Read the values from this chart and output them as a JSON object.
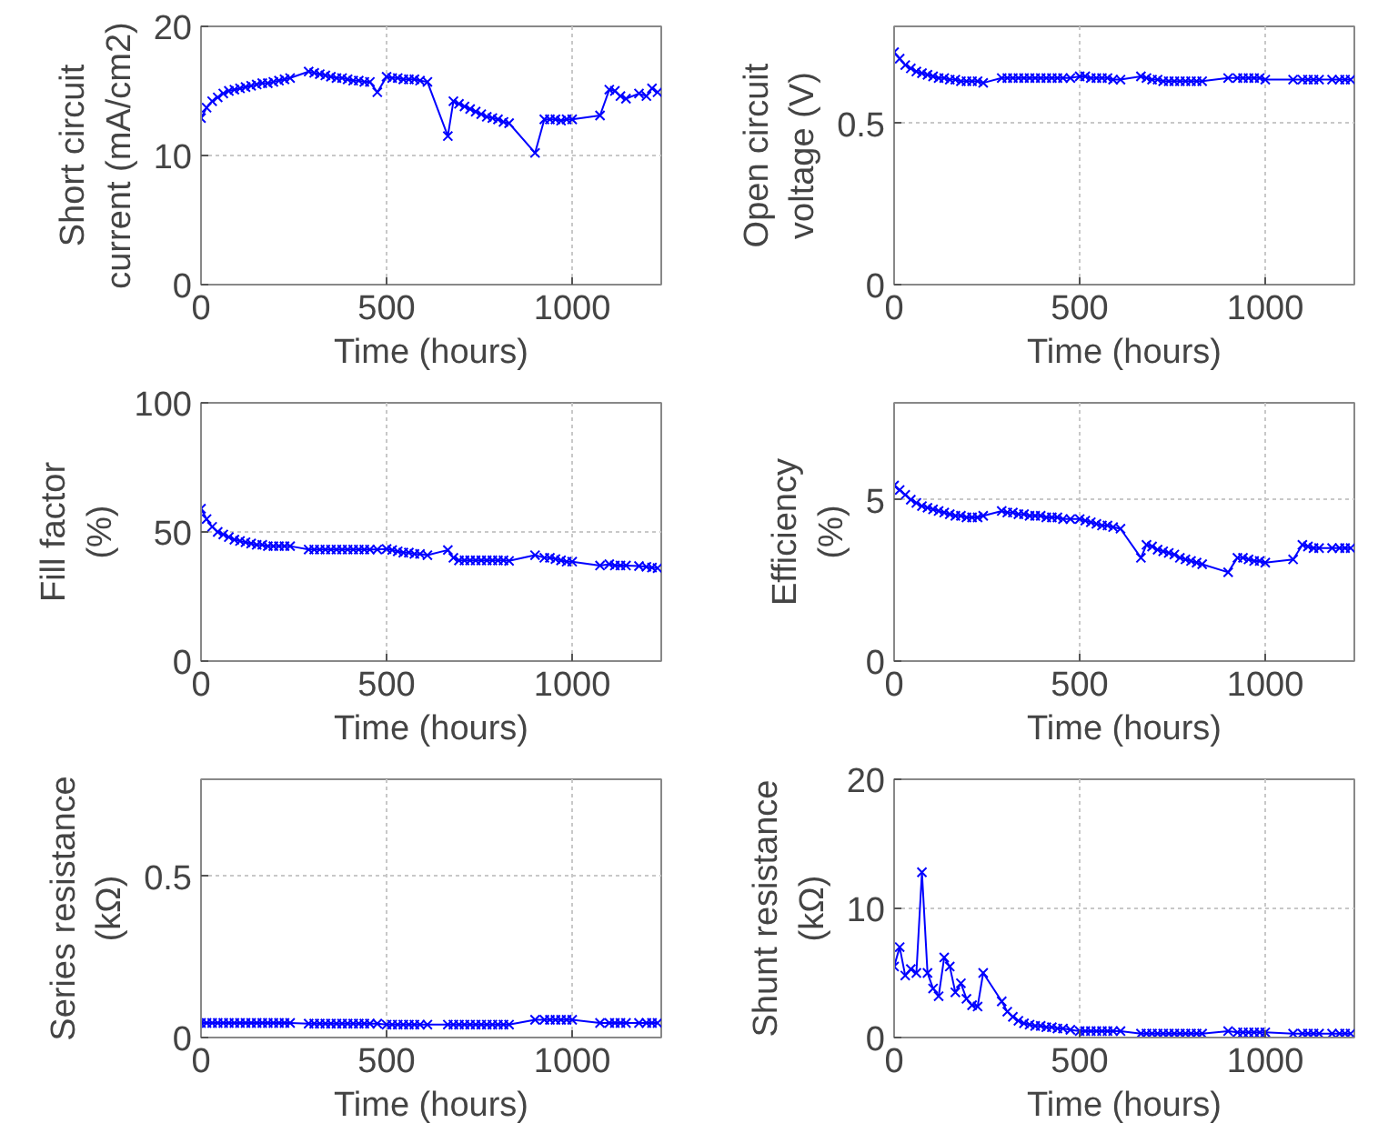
{
  "chart_data": [
    {
      "type": "line",
      "ylabel": "Short circuit\ncurrent (mA/cm2)",
      "xlabel": "Time (hours)",
      "xlim": [
        0,
        1240
      ],
      "xticks": [
        0,
        500,
        1000
      ],
      "ylim": [
        0,
        20
      ],
      "yticks": [
        0,
        10,
        20
      ],
      "grid": true,
      "marker": "cross",
      "line_style": "solid",
      "x": [
        0,
        15,
        30,
        45,
        60,
        75,
        90,
        105,
        120,
        135,
        150,
        165,
        180,
        195,
        210,
        225,
        240,
        290,
        305,
        320,
        335,
        350,
        365,
        380,
        395,
        410,
        425,
        440,
        455,
        475,
        500,
        515,
        530,
        545,
        560,
        575,
        590,
        610,
        665,
        680,
        695,
        710,
        725,
        740,
        755,
        770,
        785,
        800,
        815,
        830,
        900,
        925,
        940,
        955,
        970,
        985,
        1000,
        1075,
        1100,
        1115,
        1130,
        1145,
        1180,
        1200,
        1215,
        1230
      ],
      "series": [
        {
          "color": "#0000ff",
          "values": [
            12.9,
            13.7,
            14.2,
            14.5,
            14.8,
            15.0,
            15.1,
            15.2,
            15.3,
            15.4,
            15.5,
            15.6,
            15.6,
            15.7,
            15.8,
            15.9,
            16.0,
            16.5,
            16.4,
            16.3,
            16.2,
            16.1,
            16.0,
            16.0,
            15.9,
            15.8,
            15.8,
            15.7,
            15.7,
            14.9,
            16.1,
            16.0,
            16.0,
            15.9,
            15.9,
            15.9,
            15.8,
            15.7,
            11.5,
            14.2,
            14.0,
            13.8,
            13.6,
            13.4,
            13.2,
            13.0,
            12.9,
            12.8,
            12.6,
            12.5,
            10.2,
            12.8,
            12.8,
            12.8,
            12.7,
            12.8,
            12.8,
            13.1,
            15.1,
            15.0,
            14.6,
            14.4,
            14.8,
            14.6,
            15.2,
            14.9
          ]
        }
      ]
    },
    {
      "type": "line",
      "ylabel": "Open circuit\nvoltage (V)",
      "xlabel": "Time (hours)",
      "xlim": [
        0,
        1240
      ],
      "xticks": [
        0,
        500,
        1000
      ],
      "ylim": [
        0,
        0.8
      ],
      "yticks": [
        0,
        0.5
      ],
      "grid": true,
      "marker": "cross",
      "line_style": "solid",
      "x": [
        0,
        15,
        30,
        45,
        60,
        75,
        90,
        105,
        120,
        135,
        150,
        165,
        180,
        195,
        210,
        225,
        240,
        290,
        305,
        320,
        335,
        350,
        365,
        380,
        395,
        410,
        425,
        440,
        455,
        475,
        500,
        515,
        530,
        545,
        560,
        575,
        590,
        610,
        665,
        680,
        695,
        710,
        725,
        740,
        755,
        770,
        785,
        800,
        815,
        830,
        900,
        925,
        940,
        955,
        970,
        985,
        1000,
        1075,
        1100,
        1115,
        1130,
        1145,
        1180,
        1200,
        1215,
        1230
      ],
      "series": [
        {
          "color": "#0000ff",
          "values": [
            0.72,
            0.7,
            0.68,
            0.67,
            0.66,
            0.655,
            0.65,
            0.645,
            0.64,
            0.64,
            0.635,
            0.635,
            0.63,
            0.63,
            0.63,
            0.63,
            0.625,
            0.64,
            0.64,
            0.64,
            0.64,
            0.64,
            0.64,
            0.64,
            0.64,
            0.64,
            0.64,
            0.64,
            0.64,
            0.64,
            0.645,
            0.645,
            0.64,
            0.64,
            0.64,
            0.64,
            0.635,
            0.635,
            0.645,
            0.64,
            0.635,
            0.635,
            0.63,
            0.63,
            0.63,
            0.63,
            0.63,
            0.63,
            0.63,
            0.63,
            0.64,
            0.64,
            0.64,
            0.64,
            0.64,
            0.64,
            0.635,
            0.635,
            0.635,
            0.635,
            0.635,
            0.635,
            0.635,
            0.635,
            0.635,
            0.635
          ]
        }
      ]
    },
    {
      "type": "line",
      "ylabel": "Fill factor\n(%)",
      "xlabel": "Time (hours)",
      "xlim": [
        0,
        1240
      ],
      "xticks": [
        0,
        500,
        1000
      ],
      "ylim": [
        0,
        100
      ],
      "yticks": [
        0,
        50,
        100
      ],
      "grid": true,
      "marker": "cross",
      "line_style": "solid",
      "x": [
        0,
        15,
        30,
        45,
        60,
        75,
        90,
        105,
        120,
        135,
        150,
        165,
        180,
        195,
        210,
        225,
        240,
        290,
        305,
        320,
        335,
        350,
        365,
        380,
        395,
        410,
        425,
        440,
        455,
        475,
        500,
        515,
        530,
        545,
        560,
        575,
        590,
        610,
        665,
        680,
        695,
        710,
        725,
        740,
        755,
        770,
        785,
        800,
        815,
        830,
        900,
        925,
        940,
        955,
        970,
        985,
        1000,
        1075,
        1100,
        1115,
        1130,
        1145,
        1180,
        1200,
        1215,
        1230
      ],
      "series": [
        {
          "color": "#0000ff",
          "values": [
            59,
            55,
            52,
            50,
            49,
            48,
            47,
            46.5,
            46,
            45.5,
            45,
            45,
            44.5,
            44.5,
            44.5,
            44.5,
            44.5,
            43.2,
            43.2,
            43.2,
            43.2,
            43.2,
            43.2,
            43.2,
            43.2,
            43.2,
            43.2,
            43.2,
            43.2,
            43.2,
            43.4,
            43,
            42.5,
            42,
            42,
            41.5,
            41.5,
            41,
            43,
            40,
            39,
            39,
            39,
            39,
            39,
            39,
            39,
            39,
            39,
            38.8,
            41,
            40,
            40,
            39.5,
            39,
            38.5,
            38.5,
            37,
            37.5,
            37,
            37,
            37,
            36.8,
            36.5,
            36.2,
            36
          ]
        }
      ]
    },
    {
      "type": "line",
      "ylabel": "Efficiency\n(%)",
      "xlabel": "Time (hours)",
      "xlim": [
        0,
        1240
      ],
      "xticks": [
        0,
        500,
        1000
      ],
      "ylim": [
        0,
        8
      ],
      "yticks": [
        0,
        5
      ],
      "grid": true,
      "marker": "cross",
      "line_style": "solid",
      "x": [
        0,
        15,
        30,
        45,
        60,
        75,
        90,
        105,
        120,
        135,
        150,
        165,
        180,
        195,
        210,
        225,
        240,
        290,
        305,
        320,
        335,
        350,
        365,
        380,
        395,
        410,
        425,
        440,
        455,
        475,
        500,
        515,
        530,
        545,
        560,
        575,
        590,
        610,
        665,
        680,
        695,
        710,
        725,
        740,
        755,
        770,
        785,
        800,
        815,
        830,
        900,
        925,
        940,
        955,
        970,
        985,
        1000,
        1075,
        1100,
        1115,
        1130,
        1145,
        1180,
        1200,
        1215,
        1230
      ],
      "series": [
        {
          "color": "#0000ff",
          "values": [
            5.44,
            5.3,
            5.15,
            5.0,
            4.9,
            4.8,
            4.75,
            4.7,
            4.65,
            4.6,
            4.55,
            4.5,
            4.5,
            4.45,
            4.45,
            4.45,
            4.5,
            4.65,
            4.6,
            4.6,
            4.55,
            4.55,
            4.5,
            4.5,
            4.5,
            4.45,
            4.45,
            4.45,
            4.4,
            4.4,
            4.4,
            4.35,
            4.3,
            4.25,
            4.2,
            4.2,
            4.15,
            4.1,
            3.2,
            3.6,
            3.55,
            3.45,
            3.4,
            3.35,
            3.3,
            3.2,
            3.15,
            3.1,
            3.05,
            3.0,
            2.75,
            3.2,
            3.2,
            3.15,
            3.1,
            3.1,
            3.05,
            3.15,
            3.6,
            3.55,
            3.5,
            3.5,
            3.5,
            3.5,
            3.5,
            3.5
          ]
        }
      ]
    },
    {
      "type": "line",
      "ylabel": "Series resistance\n(kΩ)",
      "xlabel": "Time (hours)",
      "xlim": [
        0,
        1240
      ],
      "xticks": [
        0,
        500,
        1000
      ],
      "ylim": [
        0,
        0.8
      ],
      "yticks": [
        0,
        0.5
      ],
      "grid": true,
      "marker": "cross",
      "line_style": "solid",
      "x": [
        0,
        15,
        30,
        45,
        60,
        75,
        90,
        105,
        120,
        135,
        150,
        165,
        180,
        195,
        210,
        225,
        240,
        290,
        305,
        320,
        335,
        350,
        365,
        380,
        395,
        410,
        425,
        440,
        455,
        475,
        500,
        515,
        530,
        545,
        560,
        575,
        590,
        610,
        665,
        680,
        695,
        710,
        725,
        740,
        755,
        770,
        785,
        800,
        815,
        830,
        900,
        925,
        940,
        955,
        970,
        985,
        1000,
        1075,
        1100,
        1115,
        1130,
        1145,
        1180,
        1200,
        1215,
        1230
      ],
      "series": [
        {
          "color": "#0000ff",
          "values": [
            0.045,
            0.045,
            0.045,
            0.045,
            0.045,
            0.045,
            0.045,
            0.045,
            0.045,
            0.045,
            0.045,
            0.045,
            0.045,
            0.045,
            0.045,
            0.045,
            0.045,
            0.043,
            0.043,
            0.043,
            0.043,
            0.043,
            0.043,
            0.043,
            0.043,
            0.043,
            0.043,
            0.043,
            0.043,
            0.043,
            0.04,
            0.04,
            0.04,
            0.04,
            0.04,
            0.04,
            0.04,
            0.04,
            0.04,
            0.04,
            0.04,
            0.04,
            0.04,
            0.04,
            0.04,
            0.04,
            0.04,
            0.04,
            0.04,
            0.04,
            0.055,
            0.055,
            0.055,
            0.055,
            0.055,
            0.055,
            0.055,
            0.045,
            0.045,
            0.045,
            0.045,
            0.045,
            0.045,
            0.045,
            0.045,
            0.045
          ]
        }
      ]
    },
    {
      "type": "line",
      "ylabel": "Shunt resistance\n(kΩ)",
      "xlabel": "Time (hours)",
      "xlim": [
        0,
        1240
      ],
      "xticks": [
        0,
        500,
        1000
      ],
      "ylim": [
        0,
        20
      ],
      "yticks": [
        0,
        10,
        20
      ],
      "grid": true,
      "marker": "cross",
      "line_style": "solid",
      "x": [
        0,
        15,
        30,
        45,
        60,
        75,
        90,
        105,
        120,
        135,
        150,
        165,
        180,
        195,
        210,
        225,
        240,
        290,
        305,
        320,
        335,
        350,
        365,
        380,
        395,
        410,
        425,
        440,
        455,
        475,
        500,
        515,
        530,
        545,
        560,
        575,
        590,
        610,
        665,
        680,
        695,
        710,
        725,
        740,
        755,
        770,
        785,
        800,
        815,
        830,
        900,
        925,
        940,
        955,
        970,
        985,
        1000,
        1075,
        1100,
        1115,
        1130,
        1145,
        1180,
        1200,
        1215,
        1230
      ],
      "series": [
        {
          "color": "#0000ff",
          "values": [
            5.5,
            7.0,
            4.8,
            5.3,
            5.0,
            12.8,
            5.0,
            3.8,
            3.2,
            6.2,
            5.5,
            3.5,
            4.2,
            3.0,
            2.5,
            2.4,
            5.0,
            2.8,
            2.0,
            1.6,
            1.3,
            1.1,
            1.0,
            0.9,
            0.9,
            0.8,
            0.8,
            0.7,
            0.7,
            0.6,
            0.5,
            0.5,
            0.5,
            0.5,
            0.5,
            0.5,
            0.5,
            0.5,
            0.3,
            0.3,
            0.3,
            0.3,
            0.3,
            0.3,
            0.3,
            0.3,
            0.3,
            0.3,
            0.3,
            0.3,
            0.5,
            0.4,
            0.4,
            0.4,
            0.4,
            0.4,
            0.4,
            0.3,
            0.3,
            0.3,
            0.3,
            0.3,
            0.3,
            0.3,
            0.3,
            0.3
          ]
        }
      ]
    }
  ]
}
